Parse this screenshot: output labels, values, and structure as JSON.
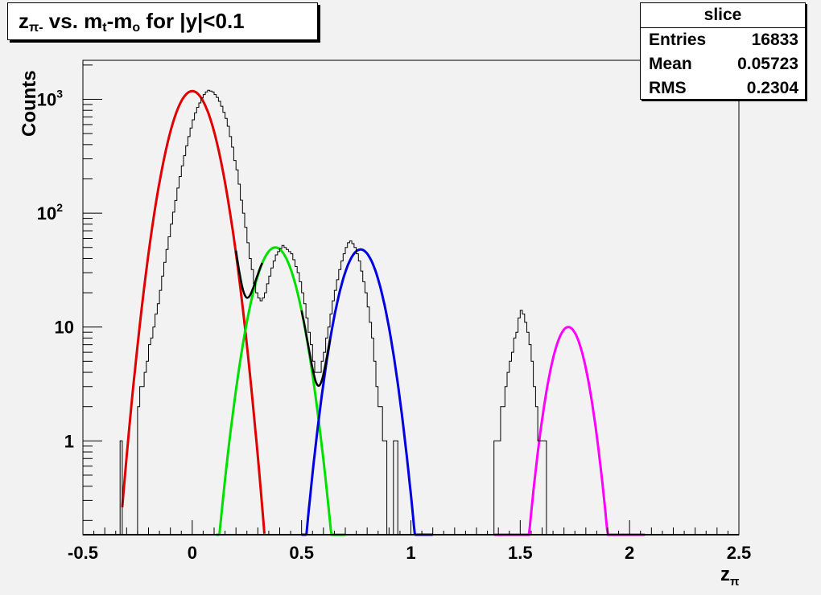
{
  "title": {
    "z": "z",
    "z_sub": "π-",
    "vs": " vs. m",
    "mt_sub": "t",
    "dash": "-m",
    "mo_sub": "o",
    "rest": " for |y|<0.1"
  },
  "stats": {
    "name": "slice",
    "entries_label": "Entries",
    "entries_value": "16833",
    "mean_label": "Mean",
    "mean_value": "0.05723",
    "rms_label": "RMS",
    "rms_value": "0.2304"
  },
  "chart_data": {
    "type": "line",
    "title": "zπ- vs. mt-mo for |y|<0.1",
    "xlabel": "zπ",
    "ylabel": "Counts",
    "xlim": [
      -0.5,
      2.5
    ],
    "ylim": [
      0.15,
      2200
    ],
    "y_scale": "log",
    "x_ticks": [
      "-0.5",
      "0",
      "0.5",
      "1",
      "1.5",
      "2",
      "2.5"
    ],
    "y_ticks": [
      {
        "value": 1,
        "label": "1"
      },
      {
        "value": 10,
        "label": "10"
      },
      {
        "value": 100,
        "label": "10",
        "sup": "2"
      },
      {
        "value": 1000,
        "label": "10",
        "sup": "3"
      }
    ],
    "grid": false,
    "series": [
      {
        "name": "",
        "color": "#e00000",
        "amplitude": 1180,
        "mean": 0.0,
        "sigma": 0.078,
        "range": [
          -0.32,
          0.33
        ]
      },
      {
        "name": "",
        "color": "#00e000",
        "amplitude": 50,
        "mean": 0.38,
        "sigma": 0.075,
        "range": [
          0.11,
          0.7
        ]
      },
      {
        "name": "",
        "color": "#0000e0",
        "amplitude": 48,
        "mean": 0.77,
        "sigma": 0.073,
        "range": [
          0.5,
          1.1
        ]
      },
      {
        "name": "",
        "color": "#ff00ff",
        "amplitude": 10,
        "mean": 1.72,
        "sigma": 0.062,
        "range": [
          1.38,
          2.07
        ]
      }
    ],
    "histogram": {
      "bin_width": 0.01,
      "start": -0.33,
      "counts": [
        1,
        0,
        0,
        0,
        0,
        0,
        0,
        0,
        2,
        3,
        3,
        4,
        5,
        7,
        8,
        10,
        13,
        16,
        21,
        28,
        37,
        48,
        62,
        80,
        102,
        129,
        166,
        210,
        260,
        320,
        390,
        470,
        560,
        660,
        760,
        850,
        930,
        1030,
        1100,
        1160,
        1200,
        1180,
        1160,
        1100,
        1040,
        960,
        870,
        770,
        680,
        580,
        470,
        380,
        290,
        240,
        180,
        130,
        100,
        75,
        55,
        40,
        32,
        24,
        20,
        18,
        17,
        18,
        20,
        24,
        28,
        33,
        38,
        43,
        46,
        49,
        52,
        50,
        48,
        46,
        44,
        39,
        34,
        30,
        25,
        20,
        16,
        12,
        9,
        7,
        5,
        4,
        4,
        4,
        5,
        6,
        8,
        10,
        13,
        17,
        21,
        26,
        32,
        38,
        44,
        50,
        55,
        57,
        54,
        50,
        44,
        38,
        31,
        25,
        20,
        15,
        11,
        8,
        5,
        3,
        2,
        2,
        1,
        1,
        0,
        0,
        0,
        1,
        1,
        0,
        0,
        0,
        0,
        0,
        0,
        0,
        0,
        0,
        0,
        0,
        0,
        0,
        0,
        0,
        0,
        0,
        0,
        0,
        0,
        0,
        0,
        0,
        0,
        0,
        0,
        0,
        0,
        0,
        0,
        0,
        0,
        0,
        0,
        0,
        0,
        0,
        0,
        0,
        0,
        0,
        0,
        0,
        0,
        1,
        1,
        1,
        2,
        2,
        3,
        4,
        5,
        6,
        8,
        9,
        12,
        14,
        13,
        11,
        9,
        7,
        5,
        3,
        2,
        1,
        1,
        1,
        1,
        0,
        0,
        0,
        0
      ]
    }
  }
}
